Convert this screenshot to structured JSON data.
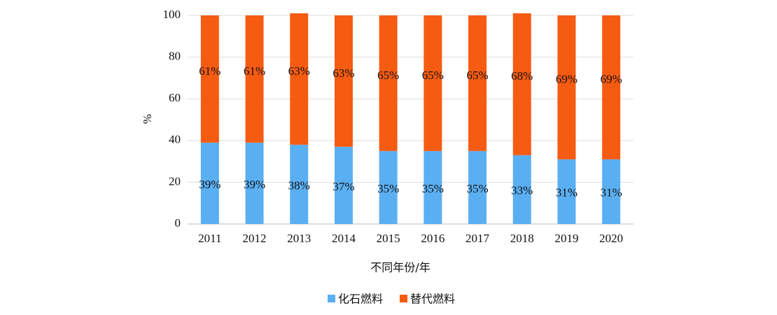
{
  "chart_data": {
    "type": "bar",
    "stacked": true,
    "xlabel": "不同年份/年",
    "ylabel": "%",
    "categories": [
      "2011",
      "2012",
      "2013",
      "2014",
      "2015",
      "2016",
      "2017",
      "2018",
      "2019",
      "2020"
    ],
    "series": [
      {
        "name": "化石燃料",
        "color": "#5aaff2",
        "values": [
          39,
          39,
          38,
          37,
          35,
          35,
          35,
          33,
          31,
          31
        ],
        "value_labels": [
          "39%",
          "39%",
          "38%",
          "37%",
          "35%",
          "35%",
          "35%",
          "33%",
          "31%",
          "31%"
        ]
      },
      {
        "name": "替代燃料",
        "color": "#f65b12",
        "values": [
          61,
          61,
          63,
          63,
          65,
          65,
          65,
          68,
          69,
          69
        ],
        "value_labels": [
          "61%",
          "61%",
          "63%",
          "63%",
          "65%",
          "65%",
          "65%",
          "68%",
          "69%",
          "69%"
        ]
      }
    ],
    "ylim": [
      0,
      100
    ],
    "yticks": [
      0,
      20,
      40,
      60,
      80,
      100
    ],
    "grid": true,
    "legend": "bottom"
  }
}
